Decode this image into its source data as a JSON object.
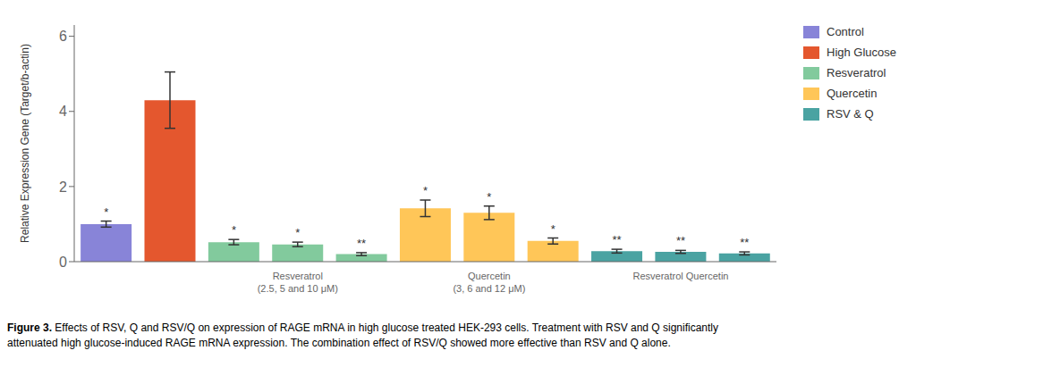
{
  "chart_data": {
    "type": "bar",
    "y_label": "Relative Expression Gene (Target/b-actin)",
    "categories": [
      null,
      null,
      null,
      "Resveratrol\n(2.5, 5 and 10 μM)",
      null,
      null,
      "Quercetin\n(3, 6 and 12 μM)",
      null,
      null,
      "Resveratrol Quercetin",
      null
    ],
    "series": [
      {
        "name": "Control",
        "color": "#8884d8",
        "values": [
          1.0,
          null,
          null,
          null,
          null,
          null,
          null,
          null,
          null,
          null,
          null
        ],
        "errors": [
          0.08,
          null,
          null,
          null,
          null,
          null,
          null,
          null,
          null,
          null,
          null
        ],
        "annotations": [
          "*",
          null,
          null,
          null,
          null,
          null,
          null,
          null,
          null,
          null,
          null
        ]
      },
      {
        "name": "High Glucose",
        "color": "#e4572e",
        "values": [
          null,
          4.3,
          null,
          null,
          null,
          null,
          null,
          null,
          null,
          null,
          null
        ],
        "errors": [
          null,
          0.75,
          null,
          null,
          null,
          null,
          null,
          null,
          null,
          null,
          null
        ],
        "annotations": [
          null,
          null,
          null,
          null,
          null,
          null,
          null,
          null,
          null,
          null,
          null
        ]
      },
      {
        "name": "Resveratrol",
        "color": "#82ca9d",
        "values": [
          null,
          null,
          0.52,
          0.46,
          0.2,
          null,
          null,
          null,
          null,
          null,
          null
        ],
        "errors": [
          null,
          null,
          0.07,
          0.06,
          0.04,
          null,
          null,
          null,
          null,
          null,
          null
        ],
        "annotations": [
          null,
          null,
          "*",
          "*",
          "**",
          null,
          null,
          null,
          null,
          null,
          null
        ]
      },
      {
        "name": "Quercetin",
        "color": "#ffc658",
        "values": [
          null,
          null,
          null,
          null,
          null,
          1.42,
          1.3,
          0.55,
          null,
          null,
          null
        ],
        "errors": [
          null,
          null,
          null,
          null,
          null,
          0.22,
          0.18,
          0.08,
          null,
          null,
          null
        ],
        "annotations": [
          null,
          null,
          null,
          null,
          null,
          "*",
          "*",
          "*",
          null,
          null,
          null
        ]
      },
      {
        "name": "RSV & Q",
        "color": "#4aa3a2",
        "values": [
          null,
          null,
          null,
          null,
          null,
          null,
          null,
          null,
          0.28,
          0.26,
          0.22
        ],
        "errors": [
          null,
          null,
          null,
          null,
          null,
          null,
          null,
          null,
          0.05,
          0.04,
          0.04
        ],
        "annotations": [
          null,
          null,
          null,
          null,
          null,
          null,
          null,
          null,
          "**",
          "**",
          "**"
        ]
      }
    ],
    "ylim": [
      0,
      6.3
    ],
    "yticks": [
      0,
      2,
      4,
      6
    ],
    "grid": false,
    "legend": "right",
    "caption_title": "Figure 3.",
    "caption": " Effects of RSV, Q and RSV/Q on expression of RAGE mRNA in high glucose treated HEK-293 cells. Treatment with RSV and Q significantly\nattenuated high glucose-induced RAGE mRNA expression. The combination effect of RSV/Q showed more effective than RSV and Q alone."
  }
}
